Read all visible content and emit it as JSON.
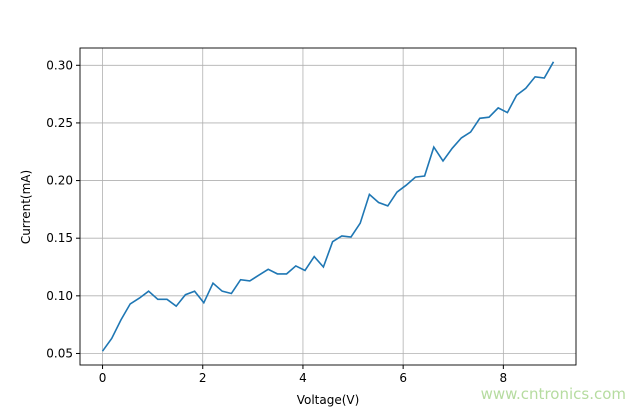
{
  "chart_data": {
    "type": "line",
    "xlabel": "Voltage(V)",
    "ylabel": "Current(mA)",
    "xlim": [
      -0.45,
      9.45
    ],
    "ylim": [
      0.04,
      0.315
    ],
    "xticks": [
      0,
      2,
      4,
      6,
      8
    ],
    "yticks": [
      "0.05",
      "0.10",
      "0.15",
      "0.20",
      "0.25",
      "0.30"
    ],
    "grid": true,
    "line_color": "#1f77b4",
    "x_range": [
      0,
      9
    ],
    "values": [
      0.052,
      0.063,
      0.079,
      0.093,
      0.098,
      0.104,
      0.097,
      0.097,
      0.091,
      0.101,
      0.104,
      0.094,
      0.111,
      0.104,
      0.102,
      0.114,
      0.113,
      0.118,
      0.123,
      0.119,
      0.119,
      0.126,
      0.122,
      0.134,
      0.125,
      0.147,
      0.152,
      0.151,
      0.163,
      0.188,
      0.181,
      0.178,
      0.19,
      0.196,
      0.203,
      0.204,
      0.229,
      0.217,
      0.228,
      0.237,
      0.242,
      0.254,
      0.255,
      0.263,
      0.259,
      0.274,
      0.28,
      0.29,
      0.289,
      0.303
    ]
  },
  "watermark": "www.cntronics.com"
}
